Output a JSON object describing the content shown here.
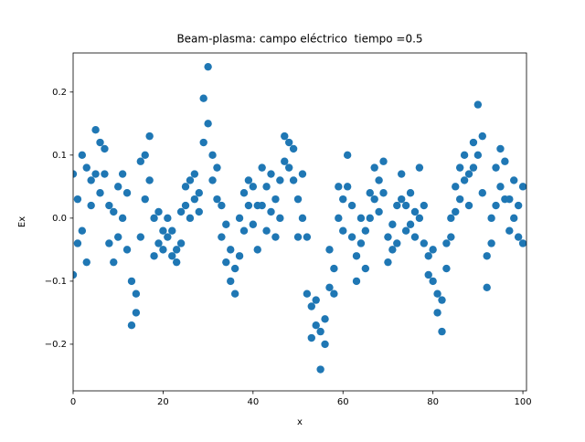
{
  "chart_data": {
    "type": "scatter",
    "title": "Beam-plasma: campo eléctrico  tiempo =0.5",
    "x_label": "x",
    "y_label": "Ex",
    "xlim": [
      0,
      100.8
    ],
    "ylim": [
      -0.274,
      0.262
    ],
    "xticks": [
      0,
      20,
      40,
      60,
      80,
      100
    ],
    "yticks": [
      {
        "value": -0.2,
        "label": "−0.2"
      },
      {
        "value": -0.1,
        "label": "−0.1"
      },
      {
        "value": 0,
        "label": "0.0"
      },
      0.1,
      0.2
    ],
    "series": [
      {
        "color": "#1f77b4",
        "x": [
          0,
          0,
          1,
          1,
          2,
          2,
          3,
          3,
          4,
          4,
          5,
          5,
          6,
          6,
          7,
          7,
          8,
          8,
          9,
          9,
          10,
          10,
          11,
          11,
          12,
          12,
          13,
          13,
          14,
          14,
          15,
          15,
          16,
          16,
          17,
          17,
          18,
          18,
          19,
          19,
          20,
          20,
          21,
          21,
          22,
          22,
          23,
          23,
          24,
          24,
          25,
          25,
          26,
          26,
          27,
          27,
          28,
          28,
          29,
          29,
          30,
          30,
          31,
          31,
          32,
          32,
          33,
          33,
          34,
          34,
          35,
          35,
          36,
          36,
          37,
          37,
          38,
          38,
          39,
          39,
          40,
          40,
          41,
          41,
          42,
          42,
          43,
          43,
          44,
          44,
          45,
          45,
          46,
          46,
          47,
          47,
          48,
          48,
          49,
          49,
          50,
          50,
          51,
          51,
          52,
          52,
          53,
          53,
          54,
          54,
          55,
          55,
          56,
          56,
          57,
          57,
          58,
          58,
          59,
          59,
          60,
          60,
          61,
          61,
          62,
          62,
          63,
          63,
          64,
          64,
          65,
          65,
          66,
          66,
          67,
          67,
          68,
          68,
          69,
          69,
          70,
          70,
          71,
          71,
          72,
          72,
          73,
          73,
          74,
          74,
          75,
          75,
          76,
          76,
          77,
          77,
          78,
          78,
          79,
          79,
          80,
          80,
          81,
          81,
          82,
          82,
          83,
          83,
          84,
          84,
          85,
          85,
          86,
          86,
          87,
          87,
          88,
          88,
          89,
          89,
          90,
          90,
          91,
          91,
          92,
          92,
          93,
          93,
          94,
          94,
          95,
          95,
          96,
          96,
          97,
          97,
          98,
          98,
          99,
          99,
          100,
          100
        ],
        "values": [
          0.07,
          -0.09,
          0.03,
          -0.04,
          0.1,
          -0.02,
          0.08,
          -0.07,
          0.06,
          0.02,
          0.14,
          0.07,
          0.12,
          0.04,
          0.11,
          0.07,
          0.02,
          -0.04,
          -0.07,
          0.01,
          0.05,
          -0.03,
          0.07,
          0.0,
          0.04,
          -0.05,
          -0.1,
          -0.17,
          -0.12,
          -0.15,
          0.09,
          -0.03,
          0.1,
          0.03,
          0.13,
          0.06,
          0.0,
          -0.06,
          -0.04,
          0.01,
          -0.02,
          -0.05,
          -0.03,
          0.0,
          -0.06,
          -0.02,
          -0.05,
          -0.07,
          0.01,
          -0.04,
          0.05,
          0.02,
          0.06,
          0.0,
          0.07,
          0.03,
          0.04,
          0.01,
          0.19,
          0.12,
          0.24,
          0.15,
          0.1,
          0.06,
          0.08,
          0.03,
          -0.03,
          0.02,
          -0.07,
          -0.01,
          -0.1,
          -0.05,
          -0.12,
          -0.08,
          -0.06,
          0.0,
          0.04,
          -0.02,
          0.06,
          0.02,
          0.05,
          -0.01,
          0.02,
          -0.05,
          0.08,
          0.02,
          0.05,
          -0.02,
          0.07,
          0.01,
          0.03,
          -0.03,
          0.06,
          0.0,
          0.13,
          0.09,
          0.12,
          0.08,
          0.11,
          0.06,
          0.03,
          -0.03,
          0.07,
          0.0,
          -0.12,
          -0.03,
          -0.19,
          -0.14,
          -0.17,
          -0.13,
          -0.24,
          -0.18,
          -0.2,
          -0.16,
          -0.05,
          -0.11,
          -0.12,
          -0.08,
          0.05,
          0.0,
          0.03,
          -0.02,
          0.1,
          0.05,
          0.02,
          -0.03,
          -0.1,
          -0.06,
          -0.04,
          0.0,
          -0.08,
          -0.02,
          0.04,
          0.0,
          0.08,
          0.03,
          0.06,
          0.01,
          0.09,
          0.04,
          -0.03,
          -0.07,
          -0.05,
          -0.01,
          0.02,
          -0.04,
          0.07,
          0.03,
          0.02,
          -0.02,
          0.04,
          -0.01,
          -0.03,
          0.01,
          0.08,
          0.0,
          0.02,
          -0.04,
          -0.06,
          -0.09,
          -0.1,
          -0.05,
          -0.15,
          -0.12,
          -0.18,
          -0.13,
          -0.04,
          -0.08,
          0.0,
          -0.03,
          0.05,
          0.01,
          0.08,
          0.03,
          0.1,
          0.06,
          0.07,
          0.02,
          0.12,
          0.08,
          0.18,
          0.1,
          0.13,
          0.04,
          -0.11,
          -0.06,
          0.0,
          -0.04,
          0.08,
          0.02,
          0.11,
          0.05,
          0.09,
          0.03,
          0.03,
          -0.02,
          0.06,
          0.0,
          -0.03,
          0.02,
          0.05,
          -0.04
        ]
      }
    ]
  }
}
